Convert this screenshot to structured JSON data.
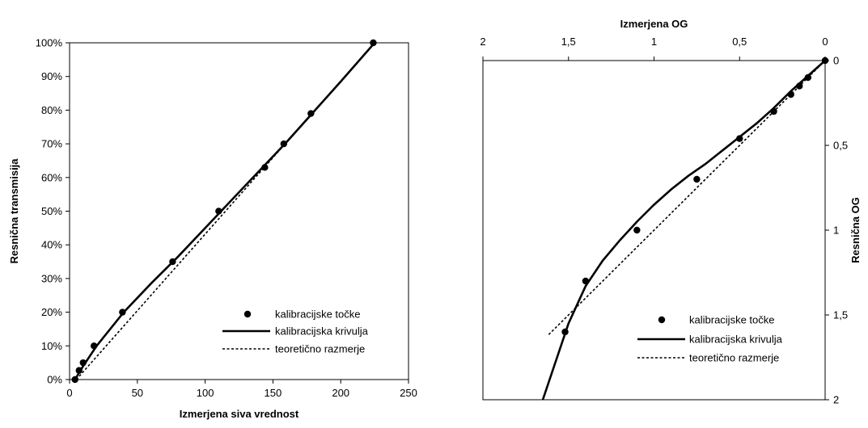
{
  "chart_data": [
    {
      "type": "line",
      "xlabel": "Izmerjena siva vrednost",
      "ylabel": "Resnična transmisija",
      "xlim": [
        0,
        250
      ],
      "ylim": [
        0,
        1
      ],
      "x_ticks": [
        "0",
        "50",
        "100",
        "150",
        "200",
        "250"
      ],
      "y_ticks": [
        "0%",
        "10%",
        "20%",
        "30%",
        "40%",
        "50%",
        "60%",
        "70%",
        "80%",
        "90%",
        "100%"
      ],
      "grid": false,
      "legend_position": "bottom-right",
      "legend": [
        "kalibracijske točke",
        "kalibracijska krivulja",
        "teoretično razmerje"
      ],
      "series": [
        {
          "name": "kalibracijske točke",
          "style": "markers",
          "x": [
            4,
            7,
            10,
            18,
            39,
            76,
            110,
            144,
            158,
            178,
            224
          ],
          "y": [
            0.0,
            0.027,
            0.05,
            0.1,
            0.2,
            0.35,
            0.5,
            0.63,
            0.7,
            0.79,
            1.0
          ]
        },
        {
          "name": "kalibracijska krivulja",
          "style": "solid",
          "x": [
            4,
            10,
            20,
            40,
            60,
            80,
            100,
            120,
            140,
            160,
            180,
            200,
            225
          ],
          "y": [
            0.0,
            0.04,
            0.1,
            0.2,
            0.285,
            0.365,
            0.45,
            0.535,
            0.62,
            0.705,
            0.795,
            0.885,
            1.0
          ]
        },
        {
          "name": "teoretično razmerje",
          "style": "dotted",
          "x": [
            5,
            225
          ],
          "y": [
            0.0,
            1.0
          ]
        }
      ]
    },
    {
      "type": "line",
      "xlabel": "Izmerjena OG",
      "ylabel": "Resnična OG",
      "xlim": [
        2,
        0
      ],
      "ylim": [
        2,
        0
      ],
      "x_ticks": [
        "2",
        "1,5",
        "1",
        "0,5",
        "0"
      ],
      "y_ticks": [
        "0",
        "0,5",
        "1",
        "1,5",
        "2"
      ],
      "x_axis_position": "top",
      "y_axis_position": "right",
      "grid": false,
      "legend_position": "bottom-right",
      "legend": [
        "kalibracijske točke",
        "kalibracijska krivulja",
        "teoretično razmerje"
      ],
      "series": [
        {
          "name": "kalibracijske točke",
          "style": "markers",
          "x": [
            0.0,
            0.1,
            0.15,
            0.2,
            0.3,
            0.5,
            0.75,
            1.1,
            1.4,
            1.52
          ],
          "y": [
            0.0,
            0.1,
            0.15,
            0.2,
            0.3,
            0.46,
            0.7,
            1.0,
            1.3,
            1.6
          ]
        },
        {
          "name": "kalibracijska krivulja",
          "style": "solid",
          "x": [
            0.0,
            0.1,
            0.2,
            0.3,
            0.4,
            0.5,
            0.6,
            0.7,
            0.8,
            0.9,
            1.0,
            1.1,
            1.2,
            1.3,
            1.4,
            1.5,
            1.6,
            1.65
          ],
          "y": [
            0.0,
            0.09,
            0.18,
            0.28,
            0.37,
            0.45,
            0.53,
            0.61,
            0.68,
            0.76,
            0.85,
            0.95,
            1.06,
            1.18,
            1.33,
            1.55,
            1.85,
            2.0
          ]
        },
        {
          "name": "teoretično razmerje",
          "style": "dotted",
          "x": [
            0.0,
            1.62
          ],
          "y": [
            0.0,
            1.62
          ]
        }
      ]
    }
  ]
}
